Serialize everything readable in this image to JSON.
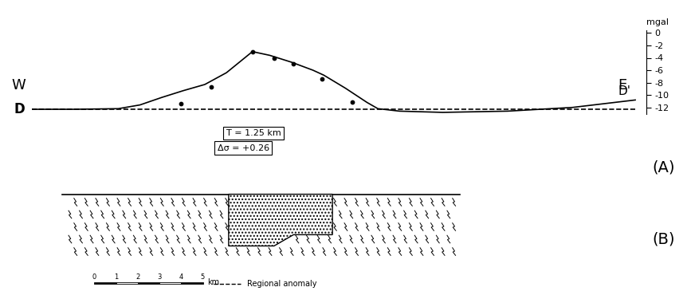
{
  "chart_data": {
    "type": "line",
    "tick_labels": "y",
    "xlim": [
      0,
      28.4
    ],
    "ylim": [
      -13,
      0.5
    ],
    "yticks": [
      0,
      -2,
      -4,
      -6,
      -8,
      -10,
      -12
    ],
    "y_label": "mgal",
    "left_label": "W",
    "right_label": "E",
    "start_label": "D",
    "end_label": "D'",
    "panel_label": "(A)",
    "legend": "lower center",
    "series": [
      {
        "type": "line",
        "color": "#000000",
        "line_style": "solid",
        "x": [
          0,
          2,
          4,
          5,
          6,
          7,
          8,
          9,
          10.2,
          11,
          12,
          13,
          13.5,
          14.5,
          15.5,
          16,
          17,
          19,
          22,
          25,
          27.9
        ],
        "values": [
          -12.3,
          -12.3,
          -12.2,
          -11.6,
          -10.4,
          -9.3,
          -8.3,
          -6.4,
          -3.0,
          -3.6,
          -4.7,
          -6.0,
          -6.8,
          -8.9,
          -11.2,
          -12.2,
          -12.6,
          -12.8,
          -12.6,
          -12.0,
          -10.8
        ]
      },
      {
        "type": "scatter",
        "color": "#000000",
        "marker": "o",
        "x": [
          6.9,
          8.3,
          10.2,
          11.2,
          12.1,
          13.4,
          14.8
        ],
        "values": [
          -11.4,
          -8.7,
          -3.0,
          -4.1,
          -4.9,
          -7.4,
          -11.1
        ]
      },
      {
        "name": "Regional anomaly",
        "type": "line",
        "color": "#000000",
        "line_style": "dashed",
        "x": [
          0,
          27.9
        ],
        "values": [
          -12.3,
          -12.3
        ]
      }
    ],
    "model": {
      "thickness_label": "T = 1.25 km",
      "density_label": "Δσ = +0.26"
    }
  },
  "section": {
    "panel_label": "(B)",
    "surface_x": [
      1.4,
      19.8
    ],
    "body_x": [
      9.1,
      9.1,
      11.2,
      12.1,
      13.9,
      13.9
    ],
    "body_depth": [
      0,
      2.3,
      2.3,
      1.8,
      1.8,
      0
    ]
  },
  "scale_bar": {
    "ticks": [
      0,
      1,
      2,
      3,
      4,
      5
    ],
    "unit": "km"
  }
}
